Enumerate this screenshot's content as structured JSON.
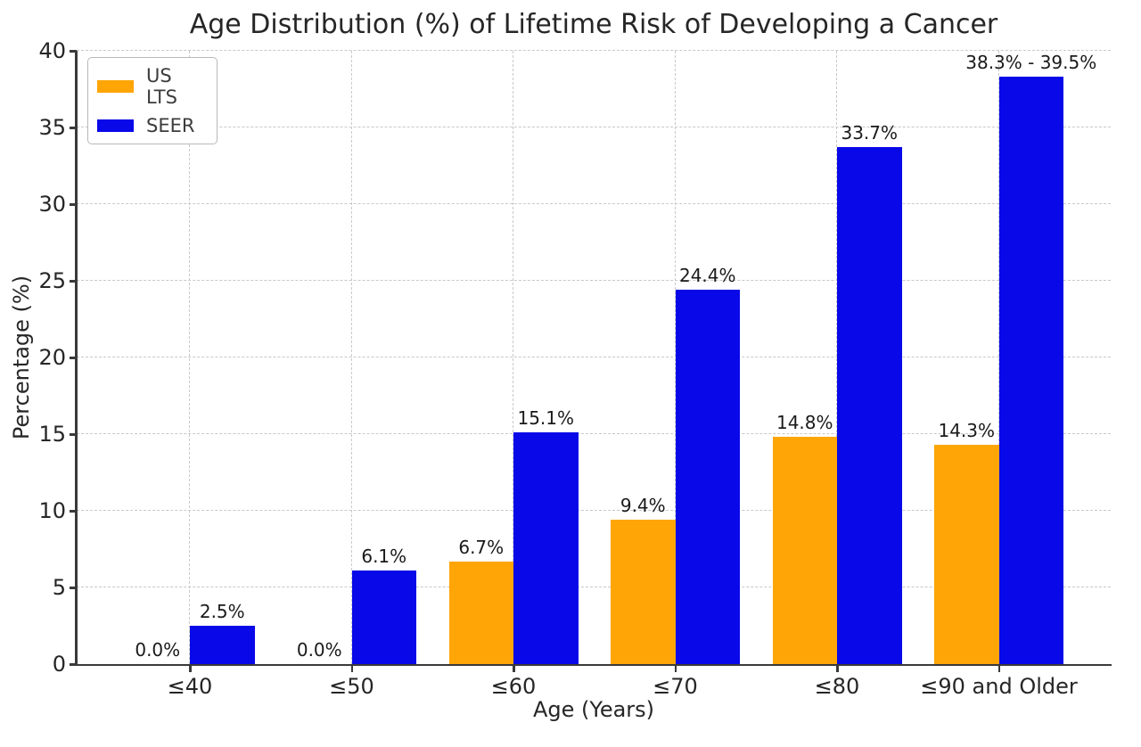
{
  "chart_data": {
    "type": "bar",
    "title": "Age Distribution (%) of Lifetime Risk of Developing a Cancer",
    "xlabel": "Age (Years)",
    "ylabel": "Percentage (%)",
    "ylim": [
      0,
      40
    ],
    "yticks": [
      0,
      5,
      10,
      15,
      20,
      25,
      30,
      35,
      40
    ],
    "categories": [
      "≤40",
      "≤50",
      "≤60",
      "≤70",
      "≤80",
      "≤90 and Older"
    ],
    "grid": "both-dashed",
    "legend_position": "upper-left",
    "series": [
      {
        "name": "US LTS",
        "color": "#FFA506",
        "values": [
          0.0,
          0.0,
          6.7,
          9.4,
          14.8,
          14.3
        ],
        "labels": [
          "0.0%",
          "0.0%",
          "6.7%",
          "9.4%",
          "14.8%",
          "14.3%"
        ]
      },
      {
        "name": "SEER",
        "color": "#0808E8",
        "values": [
          2.5,
          6.1,
          15.1,
          24.4,
          33.7,
          38.3
        ],
        "labels": [
          "2.5%",
          "6.1%",
          "15.1%",
          "24.4%",
          "33.7%",
          "38.3% - 39.5%"
        ]
      }
    ]
  }
}
